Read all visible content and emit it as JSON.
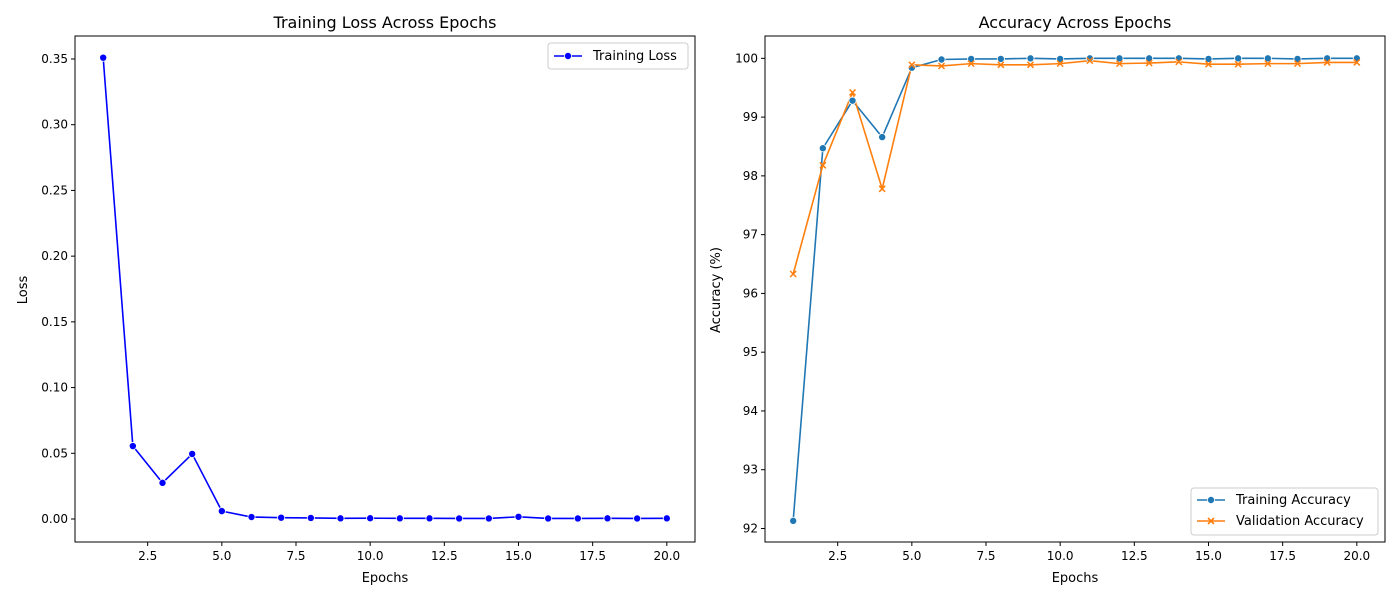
{
  "chart_data": [
    {
      "type": "line",
      "title": "Training Loss Across Epochs",
      "xlabel": "Epochs",
      "ylabel": "Loss",
      "xlim": [
        0.05,
        20.95
      ],
      "ylim": [
        -0.0175,
        0.3675
      ],
      "xticks": [
        2.5,
        5.0,
        7.5,
        10.0,
        12.5,
        15.0,
        17.5,
        20.0
      ],
      "xtick_labels": [
        "2.5",
        "5.0",
        "7.5",
        "10.0",
        "12.5",
        "15.0",
        "17.5",
        "20.0"
      ],
      "yticks": [
        0.0,
        0.05,
        0.1,
        0.15,
        0.2,
        0.25,
        0.3,
        0.35
      ],
      "ytick_labels": [
        "0.00",
        "0.05",
        "0.10",
        "0.15",
        "0.20",
        "0.25",
        "0.30",
        "0.35"
      ],
      "grid": false,
      "legend_position": "upper right",
      "x": [
        1,
        2,
        3,
        4,
        5,
        6,
        7,
        8,
        9,
        10,
        11,
        12,
        13,
        14,
        15,
        16,
        17,
        18,
        19,
        20
      ],
      "series": [
        {
          "name": "Training Loss",
          "color": "#0000ff",
          "marker": "circle",
          "values": [
            0.351,
            0.0555,
            0.0275,
            0.0495,
            0.006,
            0.0015,
            0.001,
            0.0008,
            0.0005,
            0.0006,
            0.0005,
            0.0005,
            0.0004,
            0.0004,
            0.0017,
            0.0004,
            0.0004,
            0.0005,
            0.0004,
            0.0005
          ]
        }
      ]
    },
    {
      "type": "line",
      "title": "Accuracy Across Epochs",
      "xlabel": "Epochs",
      "ylabel": "Accuracy (%)",
      "xlim": [
        0.05,
        20.95
      ],
      "ylim": [
        91.77,
        100.38
      ],
      "xticks": [
        2.5,
        5.0,
        7.5,
        10.0,
        12.5,
        15.0,
        17.5,
        20.0
      ],
      "xtick_labels": [
        "2.5",
        "5.0",
        "7.5",
        "10.0",
        "12.5",
        "15.0",
        "17.5",
        "20.0"
      ],
      "yticks": [
        92,
        93,
        94,
        95,
        96,
        97,
        98,
        99,
        100
      ],
      "ytick_labels": [
        "92",
        "93",
        "94",
        "95",
        "96",
        "97",
        "98",
        "99",
        "100"
      ],
      "grid": false,
      "legend_position": "lower right",
      "x": [
        1,
        2,
        3,
        4,
        5,
        6,
        7,
        8,
        9,
        10,
        11,
        12,
        13,
        14,
        15,
        16,
        17,
        18,
        19,
        20
      ],
      "series": [
        {
          "name": "Training Accuracy",
          "color": "#1f77b4",
          "marker": "circle",
          "values": [
            92.13,
            98.47,
            99.28,
            98.66,
            99.84,
            99.98,
            99.99,
            99.99,
            100.0,
            99.99,
            100.0,
            100.0,
            100.0,
            100.0,
            99.99,
            100.0,
            100.0,
            99.99,
            100.0,
            100.0
          ]
        },
        {
          "name": "Validation Accuracy",
          "color": "#ff7f0e",
          "marker": "x",
          "values": [
            96.33,
            98.18,
            99.42,
            97.78,
            99.89,
            99.87,
            99.91,
            99.89,
            99.89,
            99.91,
            99.96,
            99.91,
            99.92,
            99.94,
            99.9,
            99.9,
            99.91,
            99.91,
            99.93,
            99.93
          ]
        }
      ]
    }
  ]
}
